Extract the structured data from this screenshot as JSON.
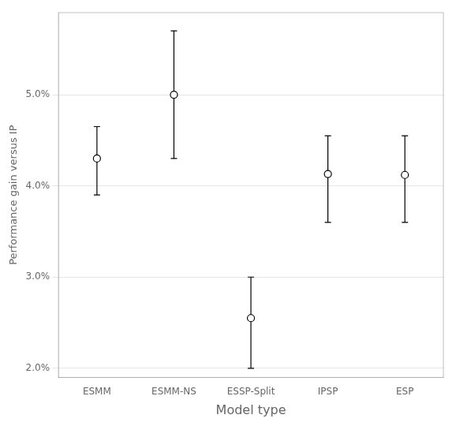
{
  "chart_data": {
    "type": "scatter",
    "categories": [
      "ESMM",
      "ESMM-NS",
      "ESSP-Split",
      "IPSP",
      "ESP"
    ],
    "values": [
      0.043,
      0.05,
      0.0255,
      0.0413,
      0.0412
    ],
    "lower_errors": [
      0.004,
      0.007,
      0.0055,
      0.0053,
      0.0052
    ],
    "upper_errors": [
      0.0035,
      0.007,
      0.0045,
      0.0042,
      0.0043
    ],
    "xlabel": "Model type",
    "ylabel": "Performance gain versus IP",
    "ylim": [
      0.019,
      0.059
    ],
    "yticks": [
      {
        "value": 0.02,
        "label": "2.0%"
      },
      {
        "value": 0.03,
        "label": "3.0%"
      },
      {
        "value": 0.04,
        "label": "4.0%"
      },
      {
        "value": 0.05,
        "label": "5.0%"
      }
    ],
    "grid": true,
    "color": "#000000",
    "marker": "circle"
  }
}
